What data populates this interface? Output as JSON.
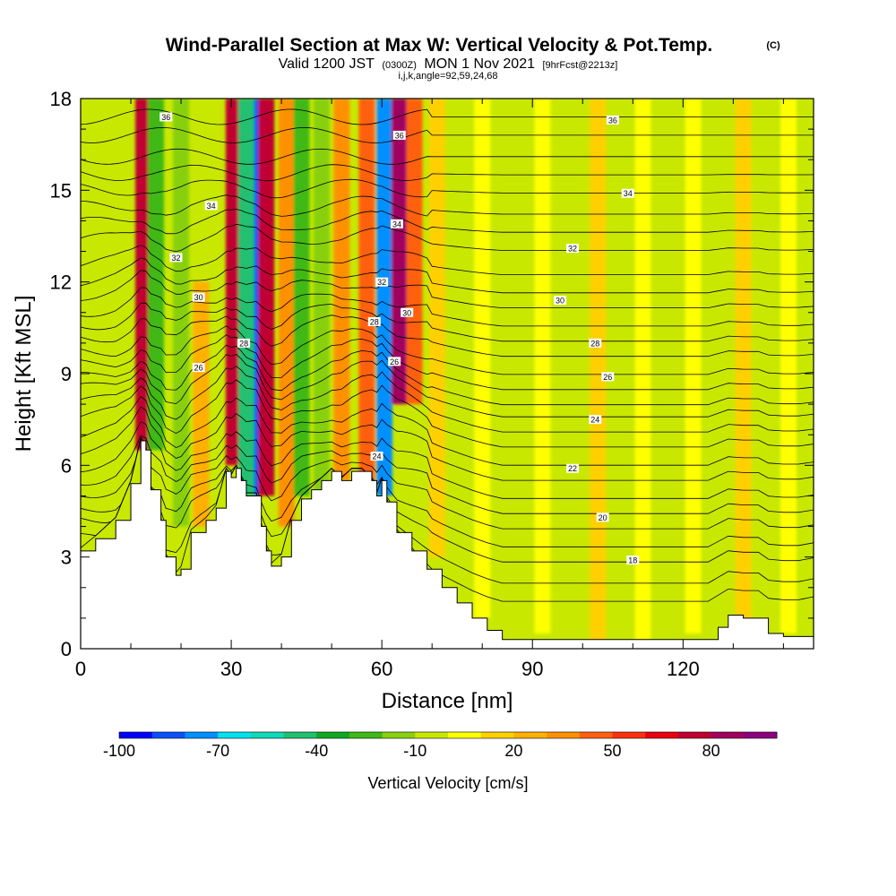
{
  "chart_data": {
    "type": "heatmap",
    "title": "Wind-Parallel Section at Max W: Vertical Velocity & Pot.Temp.",
    "title_mark": "(C)",
    "subtitle": {
      "valid": "Valid 1200 JST",
      "utc": "(0300Z)",
      "date": "MON 1 Nov 2021",
      "forecast": "[9hrFcst@2213z]"
    },
    "params_line": "i,j,k,angle=92,59,24,68",
    "xlabel": "Distance [nm]",
    "ylabel": "Height [Kft MSL]",
    "xlim": [
      0,
      146
    ],
    "ylim": [
      0,
      18
    ],
    "xticks": [
      "0",
      "30",
      "60",
      "90",
      "120"
    ],
    "yticks": [
      "0",
      "3",
      "6",
      "9",
      "12",
      "15",
      "18"
    ],
    "grid": false,
    "colorbar": {
      "title": "Vertical Velocity [cm/s]",
      "placement": "bottom",
      "range": [
        -100,
        100
      ],
      "labels": [
        "-100",
        "-70",
        "-40",
        "-10",
        "20",
        "50",
        "80"
      ],
      "colors": [
        "#0000ff",
        "#0a50ff",
        "#0090ff",
        "#00e0f0",
        "#10d8b8",
        "#20c070",
        "#10a820",
        "#40b818",
        "#88d010",
        "#c8e800",
        "#ffff00",
        "#ffd000",
        "#ffb000",
        "#ff9000",
        "#ff6010",
        "#ff3010",
        "#e80010",
        "#c00030",
        "#a00060",
        "#8c0080"
      ]
    },
    "background_color": "#c8e800",
    "vertical_velocity_features": [
      {
        "x": 12.5,
        "z_bottom": 6.5,
        "z_top": 18,
        "w": 70
      },
      {
        "x": 15.0,
        "z_bottom": 6.5,
        "z_top": 18,
        "w": -30
      },
      {
        "x": 20.0,
        "z_bottom": 4.0,
        "z_top": 18,
        "w": -20
      },
      {
        "x": 24.0,
        "z_bottom": 4.0,
        "z_top": 12,
        "w": 20
      },
      {
        "x": 30.5,
        "z_bottom": 6.0,
        "z_top": 18,
        "w": 70
      },
      {
        "x": 34.5,
        "z_bottom": 5.0,
        "z_top": 18,
        "w": -90
      },
      {
        "x": 33.0,
        "z_bottom": 5.0,
        "z_top": 18,
        "w": -50
      },
      {
        "x": 37.0,
        "z_bottom": 5.0,
        "z_top": 18,
        "w": 70
      },
      {
        "x": 41.0,
        "z_bottom": 4.0,
        "z_top": 18,
        "w": 30
      },
      {
        "x": 44.0,
        "z_bottom": 5.0,
        "z_top": 18,
        "w": -25
      },
      {
        "x": 48.0,
        "z_bottom": 5.0,
        "z_top": 18,
        "w": -15
      },
      {
        "x": 52.0,
        "z_bottom": 5.5,
        "z_top": 18,
        "w": 30
      },
      {
        "x": 57.0,
        "z_bottom": 5.0,
        "z_top": 18,
        "w": 40
      },
      {
        "x": 60.5,
        "z_bottom": 5.0,
        "z_top": 18,
        "w": -75
      },
      {
        "x": 63.5,
        "z_bottom": 8.0,
        "z_top": 18,
        "w": 80
      },
      {
        "x": 66.5,
        "z_bottom": 8.0,
        "z_top": 18,
        "w": 40
      },
      {
        "x": 71.0,
        "z_bottom": 3.0,
        "z_top": 18,
        "w": 10
      },
      {
        "x": 80.0,
        "z_bottom": 1.0,
        "z_top": 18,
        "w": 8
      },
      {
        "x": 92.0,
        "z_bottom": 0.5,
        "z_top": 18,
        "w": 5
      },
      {
        "x": 103.0,
        "z_bottom": 0.2,
        "z_top": 18,
        "w": 12
      },
      {
        "x": 112.0,
        "z_bottom": 0.2,
        "z_top": 18,
        "w": 5
      },
      {
        "x": 122.0,
        "z_bottom": 0.5,
        "z_top": 18,
        "w": 8
      },
      {
        "x": 132.0,
        "z_bottom": 0.5,
        "z_top": 18,
        "w": 10
      },
      {
        "x": 141.0,
        "z_bottom": 0.5,
        "z_top": 18,
        "w": 5
      }
    ],
    "terrain": {
      "x": [
        0,
        3,
        7,
        10,
        12,
        13,
        14,
        16,
        17,
        19,
        20,
        22,
        25,
        27,
        29,
        30,
        31,
        32,
        33,
        35,
        36,
        37,
        38,
        40,
        42,
        44,
        46,
        48,
        50,
        52,
        54,
        56,
        58,
        59,
        60,
        61,
        63,
        66,
        69,
        72,
        75,
        78,
        81,
        84,
        90,
        95,
        100,
        105,
        110,
        115,
        120,
        125,
        127,
        129,
        132,
        135,
        137,
        140,
        143,
        146
      ],
      "height": [
        3.2,
        3.6,
        4.2,
        5.4,
        6.8,
        6.5,
        5.2,
        4.2,
        3.0,
        2.4,
        2.6,
        3.8,
        4.2,
        4.6,
        5.8,
        5.6,
        5.9,
        5.5,
        5.0,
        5.0,
        4.0,
        3.2,
        2.7,
        3.0,
        4.2,
        4.9,
        5.2,
        5.5,
        5.8,
        5.5,
        5.8,
        5.8,
        5.5,
        5.0,
        5.5,
        4.8,
        3.8,
        3.2,
        2.6,
        2.0,
        1.5,
        1.0,
        0.6,
        0.3,
        0.3,
        0.3,
        0.3,
        0.3,
        0.3,
        0.3,
        0.3,
        0.3,
        0.7,
        1.1,
        1.0,
        1.0,
        0.5,
        0.4,
        0.4,
        0.6
      ]
    },
    "theta_contour_labels": [
      {
        "text": "36",
        "x": 17.0,
        "z": 17.4
      },
      {
        "text": "36",
        "x": 63.5,
        "z": 16.8
      },
      {
        "text": "36",
        "x": 106.0,
        "z": 17.3
      },
      {
        "text": "34",
        "x": 26.0,
        "z": 14.5
      },
      {
        "text": "34",
        "x": 63.0,
        "z": 13.9
      },
      {
        "text": "34",
        "x": 109.0,
        "z": 14.9
      },
      {
        "text": "32",
        "x": 19.0,
        "z": 12.8
      },
      {
        "text": "32",
        "x": 60.0,
        "z": 12.0
      },
      {
        "text": "32",
        "x": 98.0,
        "z": 13.1
      },
      {
        "text": "30",
        "x": 23.5,
        "z": 11.5
      },
      {
        "text": "30",
        "x": 65.0,
        "z": 11.0
      },
      {
        "text": "30",
        "x": 95.5,
        "z": 11.4
      },
      {
        "text": "28",
        "x": 32.5,
        "z": 10.0
      },
      {
        "text": "28",
        "x": 58.5,
        "z": 10.7
      },
      {
        "text": "28",
        "x": 102.5,
        "z": 10.0
      },
      {
        "text": "26",
        "x": 23.5,
        "z": 9.2
      },
      {
        "text": "26",
        "x": 62.5,
        "z": 9.4
      },
      {
        "text": "26",
        "x": 105.0,
        "z": 8.9
      },
      {
        "text": "24",
        "x": 59.0,
        "z": 6.3
      },
      {
        "text": "24",
        "x": 102.5,
        "z": 7.5
      },
      {
        "text": "22",
        "x": 98.0,
        "z": 5.9
      },
      {
        "text": "20",
        "x": 104.0,
        "z": 4.3
      },
      {
        "text": "18",
        "x": 110.0,
        "z": 2.9
      }
    ],
    "theta_levels": [
      {
        "z_east": 17.4
      },
      {
        "z_east": 16.8
      },
      {
        "z_east": 16.1
      },
      {
        "z_east": 15.5
      },
      {
        "z_east": 14.9
      },
      {
        "z_east": 14.2
      },
      {
        "z_east": 13.6
      },
      {
        "z_east": 13.0
      },
      {
        "z_east": 12.2
      },
      {
        "z_east": 11.6
      },
      {
        "z_east": 11.1
      },
      {
        "z_east": 10.5
      },
      {
        "z_east": 10.0
      },
      {
        "z_east": 9.5
      },
      {
        "z_east": 8.9
      },
      {
        "z_east": 8.4
      },
      {
        "z_east": 7.9
      },
      {
        "z_east": 7.5
      },
      {
        "z_east": 7.0
      },
      {
        "z_east": 6.5
      },
      {
        "z_east": 5.9
      },
      {
        "z_east": 5.4
      },
      {
        "z_east": 4.8
      },
      {
        "z_east": 4.3
      },
      {
        "z_east": 3.8
      },
      {
        "z_east": 3.2
      },
      {
        "z_east": 2.7
      },
      {
        "z_east": 2.0
      },
      {
        "z_east": 1.4
      }
    ]
  }
}
